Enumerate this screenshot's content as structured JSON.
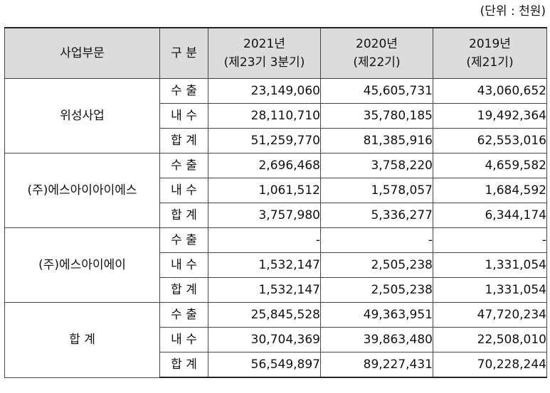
{
  "unit_note": "(단위 : 천원)",
  "header": {
    "segment": "사업부문",
    "type": "구 분",
    "years": [
      {
        "year": "2021년",
        "period": "(제23기 3분기)"
      },
      {
        "year": "2020년",
        "period": "(제22기)"
      },
      {
        "year": "2019년",
        "period": "(제21기)"
      }
    ]
  },
  "groups": [
    {
      "name": "위성사업",
      "rows": [
        {
          "type": "수 출",
          "values": [
            "23,149,060",
            "45,605,731",
            "43,060,652"
          ]
        },
        {
          "type": "내 수",
          "values": [
            "28,110,710",
            "35,780,185",
            "19,492,364"
          ]
        },
        {
          "type": "합 계",
          "values": [
            "51,259,770",
            "81,385,916",
            "62,553,016"
          ]
        }
      ]
    },
    {
      "name": "(주)에스아이아이에스",
      "rows": [
        {
          "type": "수 출",
          "values": [
            "2,696,468",
            "3,758,220",
            "4,659,582"
          ]
        },
        {
          "type": "내 수",
          "values": [
            "1,061,512",
            "1,578,057",
            "1,684,592"
          ]
        },
        {
          "type": "합 계",
          "values": [
            "3,757,980",
            "5,336,277",
            "6,344,174"
          ]
        }
      ]
    },
    {
      "name": "(주)에스아이에이",
      "rows": [
        {
          "type": "수 출",
          "values": [
            "-",
            "-",
            "-"
          ]
        },
        {
          "type": "내 수",
          "values": [
            "1,532,147",
            "2,505,238",
            "1,331,054"
          ]
        },
        {
          "type": "합 계",
          "values": [
            "1,532,147",
            "2,505,238",
            "1,331,054"
          ]
        }
      ]
    },
    {
      "name": "합 계",
      "rows": [
        {
          "type": "수 출",
          "values": [
            "25,845,528",
            "49,363,951",
            "47,720,234"
          ]
        },
        {
          "type": "내 수",
          "values": [
            "30,704,369",
            "39,863,480",
            "22,508,010"
          ]
        },
        {
          "type": "합 계",
          "values": [
            "56,549,897",
            "89,227,431",
            "70,228,244"
          ]
        }
      ]
    }
  ]
}
